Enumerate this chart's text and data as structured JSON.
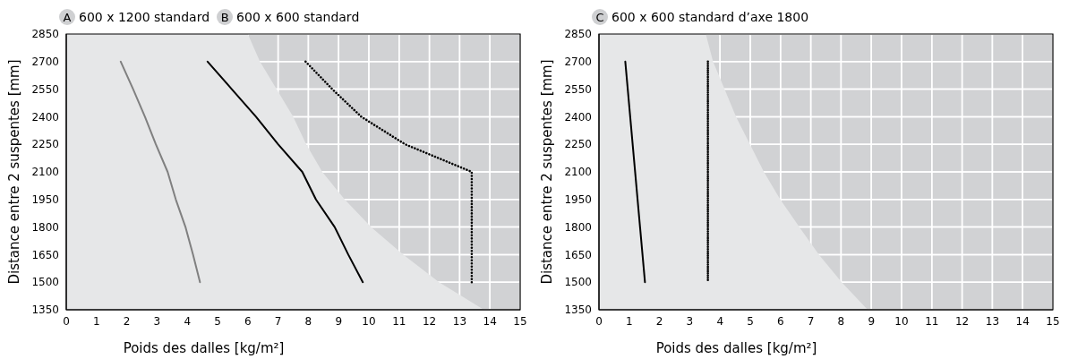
{
  "chart_data": [
    {
      "type": "line",
      "annotations": [
        "A",
        "600 x 1200 standard",
        "B",
        "600 x 600 standard"
      ],
      "xlabel": "Poids des dalles [kg/m²]",
      "ylabel": "Distance entre 2 suspentes [mm]",
      "xlim": [
        0,
        15
      ],
      "xticks": [
        0,
        1,
        2,
        3,
        4,
        5,
        6,
        7,
        8,
        9,
        10,
        11,
        12,
        13,
        14,
        15
      ],
      "ylim": [
        1350,
        2850
      ],
      "yticks": [
        1350,
        1500,
        1650,
        1800,
        1950,
        2100,
        2250,
        2400,
        2550,
        2700,
        2850
      ],
      "grid": true,
      "legend": false,
      "marker": "none",
      "series": [
        {
          "type": "area",
          "color": "#e6e7e8",
          "x": [
            0,
            6.0,
            6.4,
            6.95,
            7.5,
            7.93,
            8.46,
            9.2,
            10.07,
            11.14,
            12.32,
            13.8
          ],
          "values": [
            2850,
            2850,
            2700,
            2550,
            2400,
            2250,
            2100,
            1950,
            1800,
            1650,
            1500,
            1350
          ]
        },
        {
          "color": "#808080",
          "line_style": "solid",
          "x": [
            1.8,
            2.21,
            2.6,
            2.96,
            3.35,
            3.62,
            3.94,
            4.19,
            4.42
          ],
          "values": [
            2700,
            2550,
            2400,
            2250,
            2100,
            1950,
            1800,
            1650,
            1500
          ]
        },
        {
          "color": "#000000",
          "line_style": "solid",
          "x": [
            4.67,
            5.47,
            6.27,
            7.0,
            7.8,
            8.25,
            8.87,
            9.32,
            9.8
          ],
          "values": [
            2700,
            2550,
            2400,
            2250,
            2100,
            1950,
            1800,
            1650,
            1500
          ]
        },
        {
          "color": "#000000",
          "line_style": "dotted",
          "x": [
            7.91,
            8.79,
            9.75,
            11.2,
            13.4,
            13.4
          ],
          "values": [
            2700,
            2550,
            2400,
            2250,
            2100,
            1500
          ]
        }
      ]
    },
    {
      "type": "line",
      "annotations": [
        "C",
        "600 x 600 standard d’axe 1800"
      ],
      "xlabel": "Poids des dalles [kg/m²]",
      "ylabel": "Distance entre 2 suspentes [mm]",
      "xlim": [
        0,
        15
      ],
      "xticks": [
        0,
        1,
        2,
        3,
        4,
        5,
        6,
        7,
        8,
        9,
        10,
        11,
        12,
        13,
        14,
        15
      ],
      "ylim": [
        1350,
        2850
      ],
      "yticks": [
        1350,
        1500,
        1650,
        1800,
        1950,
        2100,
        2250,
        2400,
        2550,
        2700,
        2850
      ],
      "grid": true,
      "legend": false,
      "marker": "none",
      "series": [
        {
          "type": "area",
          "color": "#e6e7e8",
          "x": [
            0,
            3.53,
            3.77,
            4.15,
            4.53,
            4.99,
            5.45,
            5.99,
            6.62,
            7.27,
            8.02,
            8.88
          ],
          "values": [
            2850,
            2850,
            2700,
            2550,
            2400,
            2250,
            2100,
            1950,
            1800,
            1650,
            1500,
            1350
          ]
        },
        {
          "color": "#000000",
          "line_style": "solid",
          "x": [
            0.87,
            1.52
          ],
          "values": [
            2700,
            1500
          ]
        },
        {
          "color": "#000000",
          "line_style": "dotted",
          "x": [
            3.6,
            3.6
          ],
          "values": [
            2700,
            1500
          ]
        }
      ]
    }
  ]
}
